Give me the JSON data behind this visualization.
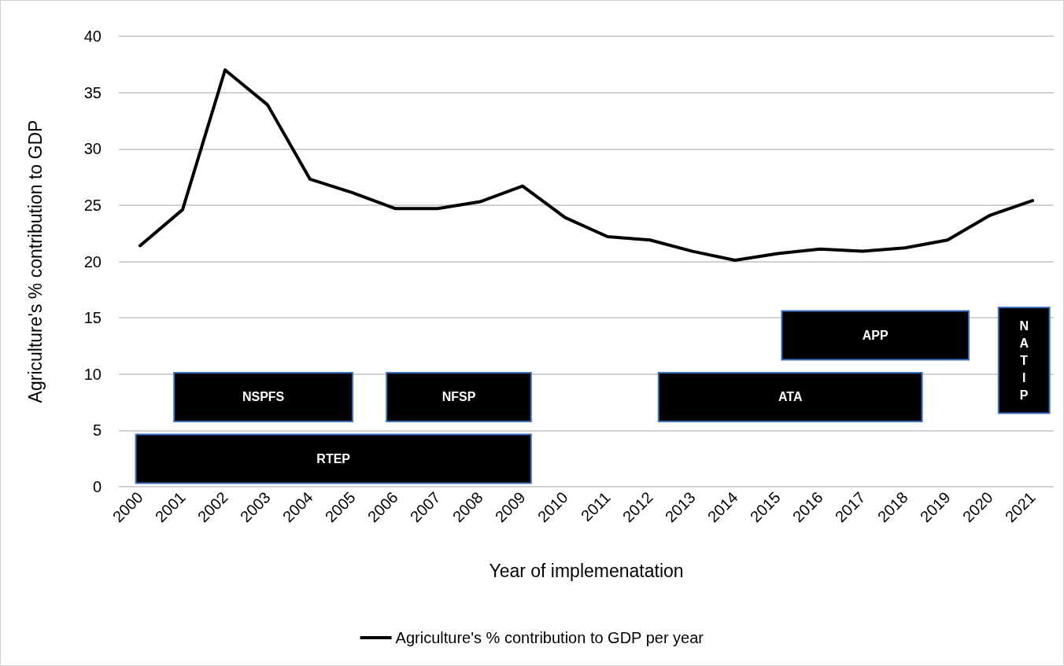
{
  "chart_data": {
    "type": "line",
    "xlabel": "Year of implemenatation",
    "ylabel": "Agriculture's % contribution to GDP",
    "x": [
      2000,
      2001,
      2002,
      2003,
      2004,
      2005,
      2006,
      2007,
      2008,
      2009,
      2010,
      2011,
      2012,
      2013,
      2014,
      2015,
      2016,
      2017,
      2018,
      2019,
      2020,
      2021
    ],
    "series": [
      {
        "name": "Agriculture's % contribution to GDP per year",
        "color": "#000000",
        "values": [
          21.4,
          24.6,
          37.0,
          33.9,
          27.3,
          26.1,
          24.7,
          24.7,
          25.3,
          26.7,
          23.9,
          22.2,
          21.9,
          20.9,
          20.1,
          20.7,
          21.1,
          20.9,
          21.2,
          21.9,
          24.1,
          25.4
        ]
      }
    ],
    "xlim": [
      1999.5,
      2021.5
    ],
    "xticks": [
      2000,
      2001,
      2002,
      2003,
      2004,
      2005,
      2006,
      2007,
      2008,
      2009,
      2010,
      2011,
      2012,
      2013,
      2014,
      2015,
      2016,
      2017,
      2018,
      2019,
      2020,
      2021
    ],
    "ylim": [
      0,
      40
    ],
    "yticks": [
      0,
      5,
      10,
      15,
      20,
      25,
      30,
      35,
      40
    ],
    "bands": [
      {
        "axis": "x",
        "from": 1999.9,
        "to": 2009.2,
        "label": "RTEP",
        "color": "#000000"
      },
      {
        "axis": "x",
        "from": 2000.8,
        "to": 2005.0,
        "label": "NSPFS",
        "color": "#000000"
      },
      {
        "axis": "x",
        "from": 2005.8,
        "to": 2009.2,
        "label": "NFSP",
        "color": "#000000"
      },
      {
        "axis": "x",
        "from": 2012.2,
        "to": 2018.4,
        "label": "ATA",
        "color": "#000000"
      },
      {
        "axis": "x",
        "from": 2015.1,
        "to": 2019.5,
        "label": "APP",
        "color": "#000000"
      },
      {
        "axis": "x",
        "from": 2020.2,
        "to": 2021.4,
        "label": "NATIP",
        "color": "#000000"
      }
    ],
    "grid": "y",
    "legend": "bottom",
    "marker": "none",
    "line_style": "solid"
  }
}
